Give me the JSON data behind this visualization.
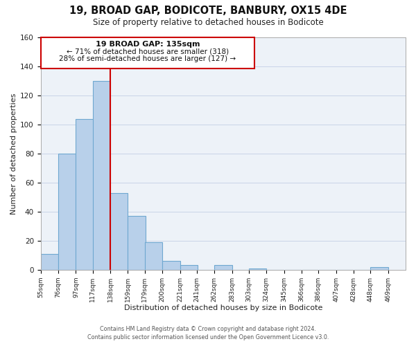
{
  "title": "19, BROAD GAP, BODICOTE, BANBURY, OX15 4DE",
  "subtitle": "Size of property relative to detached houses in Bodicote",
  "xlabel": "Distribution of detached houses by size in Bodicote",
  "ylabel": "Number of detached properties",
  "bar_left_edges": [
    55,
    76,
    97,
    117,
    138,
    159,
    179,
    200,
    221,
    241,
    262,
    283,
    303,
    324,
    345,
    366,
    386,
    407,
    428,
    448
  ],
  "bar_heights": [
    11,
    80,
    104,
    130,
    53,
    37,
    19,
    6,
    3,
    0,
    3,
    0,
    1,
    0,
    0,
    0,
    0,
    0,
    0,
    2
  ],
  "tick_labels": [
    "55sqm",
    "76sqm",
    "97sqm",
    "117sqm",
    "138sqm",
    "159sqm",
    "179sqm",
    "200sqm",
    "221sqm",
    "241sqm",
    "262sqm",
    "283sqm",
    "303sqm",
    "324sqm",
    "345sqm",
    "366sqm",
    "386sqm",
    "407sqm",
    "428sqm",
    "448sqm",
    "469sqm"
  ],
  "tick_positions": [
    55,
    76,
    97,
    117,
    138,
    159,
    179,
    200,
    221,
    241,
    262,
    283,
    303,
    324,
    345,
    366,
    386,
    407,
    428,
    448,
    469
  ],
  "bar_color": "#b8d0ea",
  "bar_edge_color": "#6fa8d0",
  "vline_x": 138,
  "vline_color": "#cc0000",
  "ylim": [
    0,
    160
  ],
  "yticks": [
    0,
    20,
    40,
    60,
    80,
    100,
    120,
    140,
    160
  ],
  "annotation_title": "19 BROAD GAP: 135sqm",
  "annotation_line1": "← 71% of detached houses are smaller (318)",
  "annotation_line2": "28% of semi-detached houses are larger (127) →",
  "footer1": "Contains HM Land Registry data © Crown copyright and database right 2024.",
  "footer2": "Contains public sector information licensed under the Open Government Licence v3.0.",
  "grid_color": "#c8d4e8",
  "background_color": "#edf2f8"
}
